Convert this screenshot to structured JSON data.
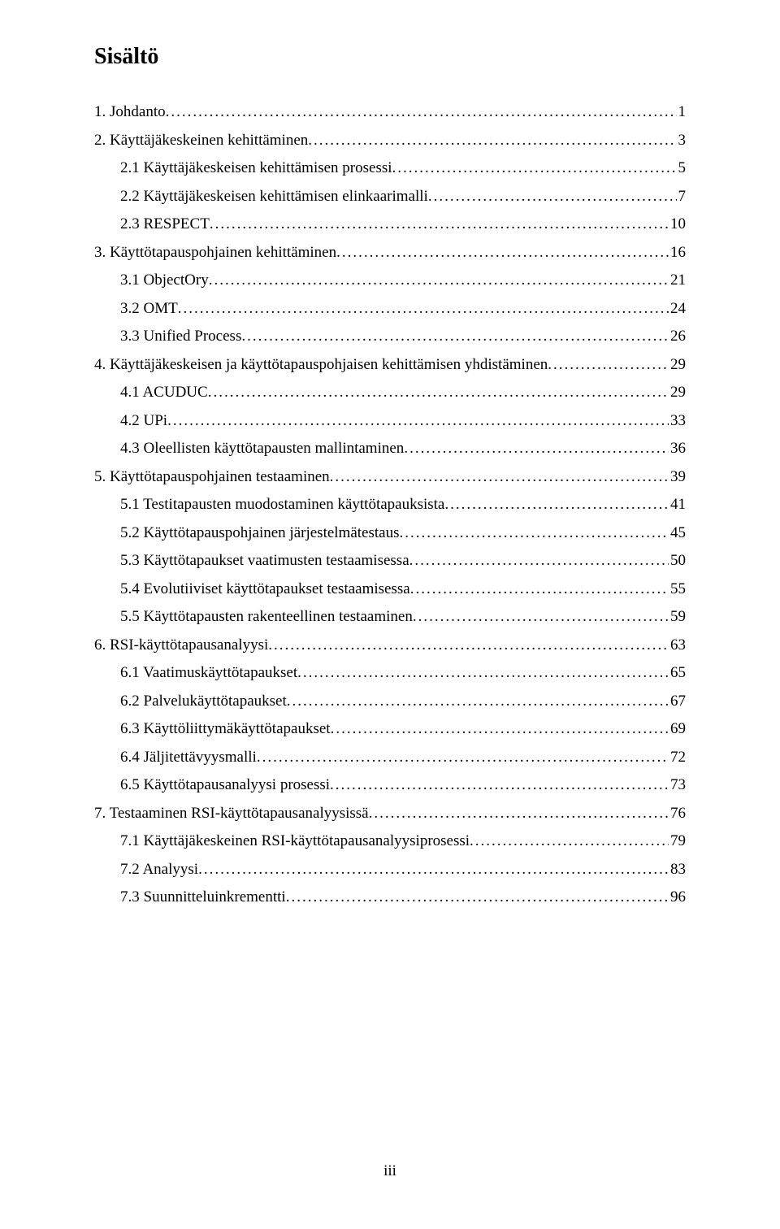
{
  "heading": "Sisältö",
  "page_number": "iii",
  "entries": [
    {
      "label": "1. Johdanto",
      "page": "1",
      "indent": 0
    },
    {
      "label": "2. Käyttäjäkeskeinen kehittäminen",
      "page": "3",
      "indent": 0
    },
    {
      "label": "2.1 Käyttäjäkeskeisen kehittämisen prosessi",
      "page": "5",
      "indent": 1
    },
    {
      "label": "2.2 Käyttäjäkeskeisen kehittämisen elinkaarimalli",
      "page": "7",
      "indent": 1
    },
    {
      "label": "2.3 RESPECT",
      "page": "10",
      "indent": 1
    },
    {
      "label": "3. Käyttötapauspohjainen kehittäminen",
      "page": "16",
      "indent": 0
    },
    {
      "label": "3.1 ObjectOry",
      "page": "21",
      "indent": 1
    },
    {
      "label": "3.2 OMT",
      "page": "24",
      "indent": 1
    },
    {
      "label": "3.3 Unified Process",
      "page": "26",
      "indent": 1
    },
    {
      "label": "4. Käyttäjäkeskeisen ja käyttötapauspohjaisen kehittämisen yhdistäminen",
      "page": "29",
      "indent": 0
    },
    {
      "label": "4.1 ACUDUC",
      "page": "29",
      "indent": 1
    },
    {
      "label": "4.2 UPi",
      "page": "33",
      "indent": 1
    },
    {
      "label": "4.3 Oleellisten käyttötapausten mallintaminen",
      "page": "36",
      "indent": 1
    },
    {
      "label": "5. Käyttötapauspohjainen testaaminen",
      "page": "39",
      "indent": 0
    },
    {
      "label": "5.1 Testitapausten muodostaminen käyttötapauksista",
      "page": "41",
      "indent": 1
    },
    {
      "label": "5.2 Käyttötapauspohjainen järjestelmätestaus",
      "page": "45",
      "indent": 1
    },
    {
      "label": "5.3 Käyttötapaukset vaatimusten testaamisessa",
      "page": "50",
      "indent": 1
    },
    {
      "label": "5.4 Evolutiiviset käyttötapaukset testaamisessa",
      "page": "55",
      "indent": 1
    },
    {
      "label": "5.5 Käyttötapausten rakenteellinen testaaminen",
      "page": "59",
      "indent": 1
    },
    {
      "label": "6. RSI-käyttötapausanalyysi",
      "page": "63",
      "indent": 0
    },
    {
      "label": "6.1 Vaatimuskäyttötapaukset",
      "page": "65",
      "indent": 1
    },
    {
      "label": "6.2 Palvelukäyttötapaukset",
      "page": "67",
      "indent": 1
    },
    {
      "label": "6.3 Käyttöliittymäkäyttötapaukset",
      "page": "69",
      "indent": 1
    },
    {
      "label": "6.4 Jäljitettävyysmalli",
      "page": "72",
      "indent": 1
    },
    {
      "label": "6.5 Käyttötapausanalyysi prosessi",
      "page": "73",
      "indent": 1
    },
    {
      "label": "7. Testaaminen RSI-käyttötapausanalyysissä",
      "page": "76",
      "indent": 0
    },
    {
      "label": "7.1 Käyttäjäkeskeinen RSI-käyttötapausanalyysiprosessi",
      "page": "79",
      "indent": 1
    },
    {
      "label": "7.2 Analyysi",
      "page": "83",
      "indent": 1
    },
    {
      "label": "7.3 Suunnitteluinkrementti",
      "page": "96",
      "indent": 1
    }
  ]
}
